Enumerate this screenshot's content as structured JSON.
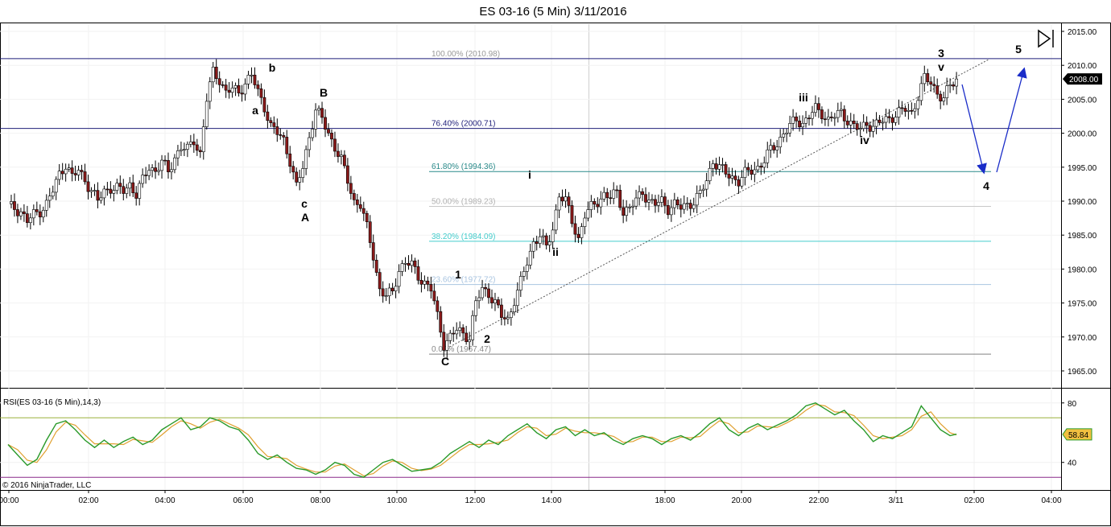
{
  "chart_data": {
    "type": "candlestick",
    "title": "ES 03-16 (5 Min)  3/11/2016",
    "instrument": "ES 03-16",
    "timeframe": "5 Min",
    "price_axis": {
      "ylim": [
        1962.5,
        2016.0
      ],
      "ticks": [
        "2015.00",
        "2010.00",
        "2005.00",
        "2000.00",
        "1995.00",
        "1990.00",
        "1985.00",
        "1980.00",
        "1975.00",
        "1970.00",
        "1965.00"
      ]
    },
    "time_axis": {
      "ticks": [
        "00:00",
        "02:00",
        "04:00",
        "06:00",
        "08:00",
        "10:00",
        "12:00",
        "14:00",
        "18:00",
        "20:00",
        "22:00",
        "3/11",
        "02:00",
        "04:00"
      ]
    },
    "last_price": "2008.00",
    "fib_levels": [
      {
        "label": "100.00% (2010.98)",
        "price": 2010.98,
        "color": "#1f1f7a"
      },
      {
        "label": "76.40% (2000.71)",
        "price": 2000.71,
        "color": "#1f1f7a"
      },
      {
        "label": "61.80% (1994.36)",
        "price": 1994.36,
        "color": "#2a8a8a"
      },
      {
        "label": "50.00% (1989.23)",
        "price": 1989.23,
        "color": "#c8c8c8"
      },
      {
        "label": "38.20% (1984.09)",
        "price": 1984.09,
        "color": "#44cccc"
      },
      {
        "label": "23.60% (1977.72)",
        "price": 1977.72,
        "color": "#a8c4e0"
      },
      {
        "label": "0.00% (1967.47)",
        "price": 1967.47,
        "color": "#808080"
      }
    ],
    "wave_labels": [
      "b",
      "a",
      "B",
      "c",
      "A",
      "C",
      "1",
      "2",
      "i",
      "ii",
      "iii",
      "iv",
      "3",
      "v",
      "4",
      "5"
    ],
    "price_path": [
      [
        0,
        1989.2
      ],
      [
        2,
        1989.0
      ],
      [
        4,
        1988.5
      ],
      [
        6,
        1987.0
      ],
      [
        8,
        1988.0
      ],
      [
        10,
        1988.6
      ],
      [
        12,
        1989.6
      ],
      [
        14,
        1991.5
      ],
      [
        16,
        1994.0
      ],
      [
        18,
        1995.5
      ],
      [
        20,
        1993.5
      ],
      [
        22,
        1994.5
      ],
      [
        24,
        1993.2
      ],
      [
        26,
        1991.5
      ],
      [
        28,
        1990.0
      ],
      [
        30,
        1991.5
      ],
      [
        32,
        1992.0
      ],
      [
        34,
        1991.8
      ],
      [
        36,
        1991.5
      ],
      [
        38,
        1992.5
      ],
      [
        40,
        1991.0
      ],
      [
        42,
        1993.0
      ],
      [
        44,
        1995.0
      ],
      [
        46,
        1994.5
      ],
      [
        48,
        1995.8
      ],
      [
        50,
        1994.2
      ],
      [
        52,
        1996.5
      ],
      [
        54,
        1998.0
      ],
      [
        56,
        1997.5
      ],
      [
        58,
        1999.0
      ],
      [
        60,
        1997.0
      ],
      [
        62,
        2005.0
      ],
      [
        64,
        2009.0
      ],
      [
        66,
        2008.0
      ],
      [
        68,
        2006.0
      ],
      [
        70,
        2006.5
      ],
      [
        72,
        2006.0
      ],
      [
        74,
        2007.5
      ],
      [
        76,
        2008.5
      ],
      [
        78,
        2006.0
      ],
      [
        80,
        2004.0
      ],
      [
        82,
        2001.0
      ],
      [
        84,
        2000.0
      ],
      [
        86,
        1999.0
      ],
      [
        88,
        1996.0
      ],
      [
        90,
        1992.0
      ],
      [
        92,
        1995.0
      ],
      [
        94,
        1999.5
      ],
      [
        96,
        2003.5
      ],
      [
        98,
        2002.0
      ],
      [
        100,
        2000.0
      ],
      [
        102,
        1998.0
      ],
      [
        104,
        1996.0
      ],
      [
        106,
        1993.0
      ],
      [
        108,
        1990.0
      ],
      [
        110,
        1989.5
      ],
      [
        112,
        1986.0
      ],
      [
        114,
        1982.0
      ],
      [
        116,
        1977.0
      ],
      [
        118,
        1976.0
      ],
      [
        120,
        1976.5
      ],
      [
        122,
        1980.0
      ],
      [
        124,
        1981.0
      ],
      [
        126,
        1980.5
      ],
      [
        128,
        1979.0
      ],
      [
        130,
        1978.0
      ],
      [
        132,
        1977.0
      ],
      [
        134,
        1973.0
      ],
      [
        136,
        1969.0
      ],
      [
        138,
        1970.0
      ],
      [
        140,
        1971.0
      ],
      [
        142,
        1970.5
      ],
      [
        144,
        1970.0
      ],
      [
        146,
        1975.0
      ],
      [
        148,
        1977.0
      ],
      [
        150,
        1976.5
      ],
      [
        152,
        1975.0
      ],
      [
        154,
        1973.0
      ],
      [
        156,
        1972.5
      ],
      [
        158,
        1975.5
      ],
      [
        160,
        1978.0
      ],
      [
        162,
        1981.0
      ],
      [
        164,
        1984.0
      ],
      [
        166,
        1985.0
      ],
      [
        168,
        1983.0
      ],
      [
        170,
        1986.0
      ],
      [
        172,
        1991.0
      ],
      [
        174,
        1990.0
      ],
      [
        176,
        1987.0
      ],
      [
        178,
        1984.5
      ],
      [
        180,
        1988.0
      ],
      [
        182,
        1989.0
      ],
      [
        184,
        1990.0
      ],
      [
        186,
        1991.0
      ],
      [
        188,
        1990.5
      ],
      [
        190,
        1991.2
      ],
      [
        192,
        1988.5
      ],
      [
        194,
        1989.0
      ],
      [
        196,
        1990.0
      ],
      [
        198,
        1991.5
      ],
      [
        200,
        1990.0
      ],
      [
        202,
        1989.5
      ],
      [
        204,
        1990.0
      ],
      [
        206,
        1989.0
      ],
      [
        208,
        1989.5
      ],
      [
        210,
        1989.0
      ],
      [
        212,
        1989.5
      ],
      [
        214,
        1990.0
      ],
      [
        216,
        1991.0
      ],
      [
        218,
        1993.0
      ],
      [
        220,
        1996.0
      ],
      [
        222,
        1995.0
      ],
      [
        224,
        1994.0
      ],
      [
        226,
        1993.5
      ],
      [
        228,
        1993.0
      ],
      [
        230,
        1994.0
      ],
      [
        232,
        1994.5
      ],
      [
        234,
        1995.0
      ],
      [
        236,
        1996.0
      ],
      [
        238,
        1997.5
      ],
      [
        240,
        1998.5
      ],
      [
        242,
        2000.0
      ],
      [
        244,
        2001.0
      ],
      [
        246,
        2002.0
      ],
      [
        248,
        2001.5
      ],
      [
        250,
        2002.5
      ],
      [
        252,
        2003.5
      ],
      [
        254,
        2003.0
      ],
      [
        256,
        2002.0
      ],
      [
        258,
        2002.5
      ],
      [
        260,
        2003.0
      ],
      [
        262,
        2002.0
      ],
      [
        264,
        2001.0
      ],
      [
        266,
        2000.5
      ],
      [
        268,
        2001.5
      ],
      [
        270,
        2001.0
      ],
      [
        272,
        2001.5
      ],
      [
        274,
        2002.0
      ],
      [
        276,
        2002.5
      ],
      [
        278,
        2003.0
      ],
      [
        280,
        2003.5
      ],
      [
        282,
        2003.0
      ],
      [
        284,
        2005.5
      ],
      [
        286,
        2008.0
      ],
      [
        288,
        2007.5
      ],
      [
        290,
        2006.0
      ],
      [
        292,
        2005.0
      ],
      [
        294,
        2007.0
      ],
      [
        296,
        2008.0
      ]
    ],
    "rsi": {
      "label": "RSI(ES 03-16 (5 Min),14,3)",
      "ylim": [
        22,
        88
      ],
      "ticks": [
        "80",
        "40"
      ],
      "upper_level": 70,
      "lower_level": 30,
      "last_value": "58.84",
      "rsi_color": "#2a9a2a",
      "avg_color": "#e0a030",
      "values": [
        [
          0,
          52
        ],
        [
          3,
          45
        ],
        [
          6,
          38
        ],
        [
          9,
          42
        ],
        [
          12,
          55
        ],
        [
          15,
          66
        ],
        [
          18,
          68
        ],
        [
          21,
          62
        ],
        [
          24,
          55
        ],
        [
          27,
          50
        ],
        [
          30,
          55
        ],
        [
          33,
          50
        ],
        [
          36,
          54
        ],
        [
          39,
          57
        ],
        [
          42,
          52
        ],
        [
          45,
          55
        ],
        [
          48,
          62
        ],
        [
          51,
          66
        ],
        [
          54,
          70
        ],
        [
          57,
          62
        ],
        [
          60,
          64
        ],
        [
          63,
          70
        ],
        [
          66,
          68
        ],
        [
          69,
          64
        ],
        [
          72,
          62
        ],
        [
          75,
          55
        ],
        [
          78,
          46
        ],
        [
          81,
          42
        ],
        [
          84,
          45
        ],
        [
          87,
          40
        ],
        [
          90,
          36
        ],
        [
          93,
          35
        ],
        [
          96,
          32
        ],
        [
          99,
          35
        ],
        [
          102,
          40
        ],
        [
          105,
          38
        ],
        [
          108,
          32
        ],
        [
          111,
          30
        ],
        [
          114,
          35
        ],
        [
          117,
          40
        ],
        [
          120,
          42
        ],
        [
          123,
          38
        ],
        [
          126,
          34
        ],
        [
          129,
          35
        ],
        [
          132,
          36
        ],
        [
          135,
          40
        ],
        [
          138,
          46
        ],
        [
          141,
          50
        ],
        [
          144,
          54
        ],
        [
          147,
          50
        ],
        [
          150,
          55
        ],
        [
          153,
          52
        ],
        [
          156,
          58
        ],
        [
          159,
          62
        ],
        [
          162,
          66
        ],
        [
          165,
          60
        ],
        [
          168,
          56
        ],
        [
          171,
          62
        ],
        [
          174,
          64
        ],
        [
          177,
          58
        ],
        [
          180,
          62
        ],
        [
          183,
          58
        ],
        [
          186,
          60
        ],
        [
          189,
          55
        ],
        [
          192,
          52
        ],
        [
          195,
          56
        ],
        [
          198,
          58
        ],
        [
          201,
          56
        ],
        [
          204,
          52
        ],
        [
          207,
          56
        ],
        [
          210,
          58
        ],
        [
          213,
          55
        ],
        [
          216,
          60
        ],
        [
          219,
          66
        ],
        [
          222,
          70
        ],
        [
          225,
          62
        ],
        [
          228,
          58
        ],
        [
          231,
          63
        ],
        [
          234,
          66
        ],
        [
          237,
          62
        ],
        [
          240,
          65
        ],
        [
          243,
          68
        ],
        [
          246,
          72
        ],
        [
          249,
          78
        ],
        [
          252,
          80
        ],
        [
          255,
          76
        ],
        [
          258,
          72
        ],
        [
          261,
          75
        ],
        [
          264,
          68
        ],
        [
          267,
          62
        ],
        [
          270,
          54
        ],
        [
          273,
          58
        ],
        [
          276,
          56
        ],
        [
          279,
          60
        ],
        [
          282,
          64
        ],
        [
          285,
          78
        ],
        [
          288,
          70
        ],
        [
          291,
          62
        ],
        [
          294,
          58
        ],
        [
          296,
          59
        ]
      ]
    },
    "projection": [
      [
        1195,
        105
      ],
      [
        1222,
        214
      ],
      [
        1238,
        214
      ],
      [
        1272,
        86
      ]
    ],
    "copyright": "© 2016 NinjaTrader, LLC"
  }
}
